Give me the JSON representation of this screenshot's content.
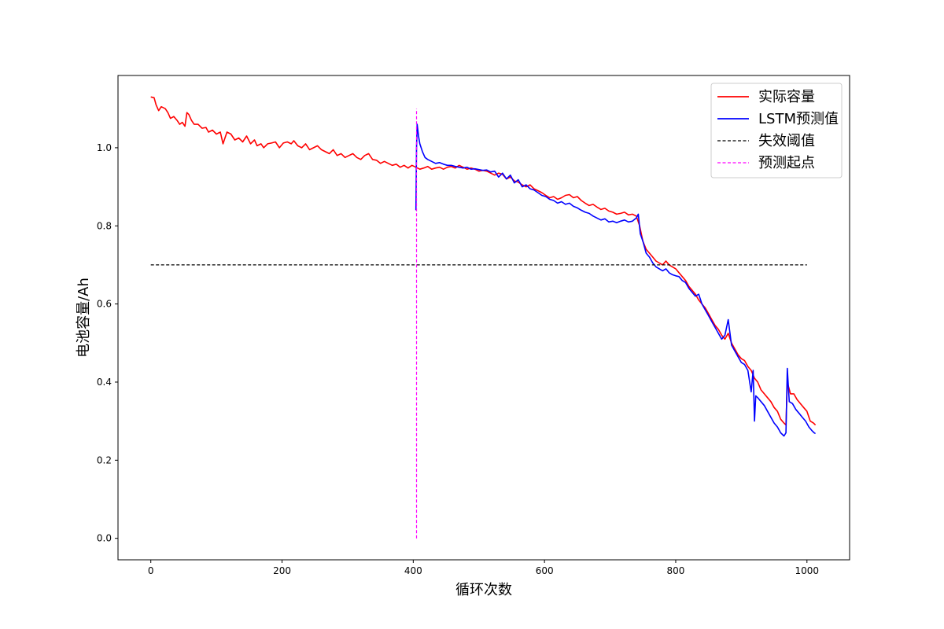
{
  "chart_data": {
    "type": "line",
    "xlabel": "循环次数",
    "ylabel": "电池容量/Ah",
    "xlim": [
      -50,
      1065
    ],
    "ylim": [
      -0.055,
      1.185
    ],
    "xticks": [
      0,
      200,
      400,
      600,
      800,
      1000
    ],
    "yticks": [
      0.0,
      0.2,
      0.4,
      0.6,
      0.8,
      1.0
    ],
    "xtick_labels": [
      "0",
      "200",
      "400",
      "600",
      "800",
      "1000"
    ],
    "ytick_labels": [
      "0.0",
      "0.2",
      "0.4",
      "0.6",
      "0.8",
      "1.0"
    ],
    "grid": false,
    "legend_position": "upper right",
    "series": [
      {
        "name": "实际容量",
        "color": "#ff0000",
        "style": "solid",
        "points": [
          [
            0,
            1.13
          ],
          [
            5,
            1.128
          ],
          [
            8,
            1.11
          ],
          [
            12,
            1.095
          ],
          [
            16,
            1.105
          ],
          [
            22,
            1.1
          ],
          [
            26,
            1.09
          ],
          [
            30,
            1.075
          ],
          [
            35,
            1.08
          ],
          [
            40,
            1.07
          ],
          [
            44,
            1.06
          ],
          [
            48,
            1.065
          ],
          [
            52,
            1.055
          ],
          [
            55,
            1.09
          ],
          [
            58,
            1.085
          ],
          [
            62,
            1.07
          ],
          [
            66,
            1.06
          ],
          [
            72,
            1.06
          ],
          [
            78,
            1.05
          ],
          [
            84,
            1.052
          ],
          [
            88,
            1.04
          ],
          [
            94,
            1.045
          ],
          [
            100,
            1.035
          ],
          [
            106,
            1.04
          ],
          [
            110,
            1.01
          ],
          [
            116,
            1.04
          ],
          [
            122,
            1.035
          ],
          [
            128,
            1.02
          ],
          [
            134,
            1.025
          ],
          [
            140,
            1.015
          ],
          [
            146,
            1.03
          ],
          [
            152,
            1.01
          ],
          [
            158,
            1.02
          ],
          [
            162,
            1.005
          ],
          [
            168,
            1.01
          ],
          [
            172,
            1.0
          ],
          [
            178,
            1.01
          ],
          [
            184,
            1.012
          ],
          [
            190,
            1.015
          ],
          [
            196,
            1.0
          ],
          [
            202,
            1.012
          ],
          [
            208,
            1.015
          ],
          [
            214,
            1.01
          ],
          [
            218,
            1.018
          ],
          [
            224,
            1.005
          ],
          [
            230,
            1.0
          ],
          [
            236,
            1.01
          ],
          [
            242,
            0.995
          ],
          [
            248,
            1.0
          ],
          [
            254,
            1.005
          ],
          [
            260,
            0.995
          ],
          [
            266,
            0.99
          ],
          [
            272,
            0.985
          ],
          [
            278,
            0.995
          ],
          [
            284,
            0.98
          ],
          [
            290,
            0.985
          ],
          [
            296,
            0.975
          ],
          [
            302,
            0.98
          ],
          [
            308,
            0.985
          ],
          [
            314,
            0.975
          ],
          [
            320,
            0.97
          ],
          [
            326,
            0.98
          ],
          [
            332,
            0.985
          ],
          [
            338,
            0.97
          ],
          [
            344,
            0.968
          ],
          [
            350,
            0.96
          ],
          [
            356,
            0.965
          ],
          [
            362,
            0.96
          ],
          [
            368,
            0.955
          ],
          [
            374,
            0.958
          ],
          [
            380,
            0.95
          ],
          [
            386,
            0.955
          ],
          [
            392,
            0.948
          ],
          [
            398,
            0.955
          ],
          [
            404,
            0.95
          ],
          [
            410,
            0.945
          ],
          [
            416,
            0.948
          ],
          [
            422,
            0.952
          ],
          [
            428,
            0.945
          ],
          [
            434,
            0.948
          ],
          [
            440,
            0.95
          ],
          [
            446,
            0.945
          ],
          [
            452,
            0.95
          ],
          [
            458,
            0.952
          ],
          [
            464,
            0.948
          ],
          [
            470,
            0.955
          ],
          [
            476,
            0.95
          ],
          [
            482,
            0.945
          ],
          [
            488,
            0.948
          ],
          [
            494,
            0.945
          ],
          [
            500,
            0.94
          ],
          [
            506,
            0.942
          ],
          [
            512,
            0.94
          ],
          [
            518,
            0.935
          ],
          [
            524,
            0.93
          ],
          [
            530,
            0.935
          ],
          [
            536,
            0.932
          ],
          [
            542,
            0.92
          ],
          [
            548,
            0.925
          ],
          [
            554,
            0.915
          ],
          [
            560,
            0.912
          ],
          [
            566,
            0.905
          ],
          [
            572,
            0.9
          ],
          [
            578,
            0.905
          ],
          [
            584,
            0.895
          ],
          [
            590,
            0.89
          ],
          [
            596,
            0.885
          ],
          [
            602,
            0.878
          ],
          [
            608,
            0.872
          ],
          [
            614,
            0.875
          ],
          [
            620,
            0.868
          ],
          [
            626,
            0.872
          ],
          [
            632,
            0.878
          ],
          [
            638,
            0.88
          ],
          [
            644,
            0.872
          ],
          [
            650,
            0.875
          ],
          [
            656,
            0.865
          ],
          [
            662,
            0.858
          ],
          [
            668,
            0.852
          ],
          [
            674,
            0.855
          ],
          [
            680,
            0.848
          ],
          [
            686,
            0.842
          ],
          [
            692,
            0.845
          ],
          [
            698,
            0.838
          ],
          [
            704,
            0.835
          ],
          [
            710,
            0.83
          ],
          [
            716,
            0.832
          ],
          [
            722,
            0.835
          ],
          [
            728,
            0.828
          ],
          [
            734,
            0.83
          ],
          [
            740,
            0.825
          ],
          [
            745,
            0.8
          ],
          [
            750,
            0.76
          ],
          [
            755,
            0.74
          ],
          [
            760,
            0.73
          ],
          [
            765,
            0.72
          ],
          [
            770,
            0.71
          ],
          [
            775,
            0.705
          ],
          [
            780,
            0.7
          ],
          [
            785,
            0.71
          ],
          [
            790,
            0.7
          ],
          [
            795,
            0.695
          ],
          [
            800,
            0.69
          ],
          [
            805,
            0.68
          ],
          [
            810,
            0.67
          ],
          [
            815,
            0.66
          ],
          [
            820,
            0.645
          ],
          [
            825,
            0.635
          ],
          [
            830,
            0.625
          ],
          [
            835,
            0.61
          ],
          [
            840,
            0.6
          ],
          [
            845,
            0.59
          ],
          [
            850,
            0.575
          ],
          [
            855,
            0.56
          ],
          [
            860,
            0.545
          ],
          [
            865,
            0.535
          ],
          [
            870,
            0.52
          ],
          [
            875,
            0.51
          ],
          [
            880,
            0.525
          ],
          [
            885,
            0.5
          ],
          [
            890,
            0.485
          ],
          [
            895,
            0.47
          ],
          [
            900,
            0.46
          ],
          [
            905,
            0.455
          ],
          [
            910,
            0.44
          ],
          [
            915,
            0.43
          ],
          [
            920,
            0.41
          ],
          [
            925,
            0.4
          ],
          [
            930,
            0.38
          ],
          [
            935,
            0.37
          ],
          [
            940,
            0.36
          ],
          [
            945,
            0.35
          ],
          [
            950,
            0.335
          ],
          [
            955,
            0.325
          ],
          [
            960,
            0.305
          ],
          [
            965,
            0.295
          ],
          [
            968,
            0.29
          ],
          [
            970,
            0.4
          ],
          [
            975,
            0.37
          ],
          [
            980,
            0.37
          ],
          [
            985,
            0.355
          ],
          [
            990,
            0.345
          ],
          [
            995,
            0.335
          ],
          [
            1000,
            0.325
          ],
          [
            1005,
            0.3
          ],
          [
            1010,
            0.295
          ],
          [
            1013,
            0.29
          ]
        ]
      },
      {
        "name": "LSTM预测值",
        "color": "#0000ff",
        "style": "solid",
        "points": [
          [
            404,
            0.84
          ],
          [
            405,
            1.0
          ],
          [
            406,
            1.06
          ],
          [
            408,
            1.03
          ],
          [
            410,
            1.01
          ],
          [
            414,
            0.99
          ],
          [
            418,
            0.975
          ],
          [
            422,
            0.97
          ],
          [
            428,
            0.965
          ],
          [
            434,
            0.96
          ],
          [
            440,
            0.962
          ],
          [
            446,
            0.958
          ],
          [
            452,
            0.955
          ],
          [
            458,
            0.955
          ],
          [
            464,
            0.952
          ],
          [
            470,
            0.95
          ],
          [
            476,
            0.948
          ],
          [
            482,
            0.95
          ],
          [
            488,
            0.945
          ],
          [
            494,
            0.946
          ],
          [
            500,
            0.944
          ],
          [
            506,
            0.942
          ],
          [
            512,
            0.943
          ],
          [
            518,
            0.938
          ],
          [
            524,
            0.94
          ],
          [
            530,
            0.925
          ],
          [
            536,
            0.935
          ],
          [
            542,
            0.92
          ],
          [
            548,
            0.93
          ],
          [
            554,
            0.91
          ],
          [
            560,
            0.918
          ],
          [
            566,
            0.9
          ],
          [
            572,
            0.905
          ],
          [
            578,
            0.895
          ],
          [
            584,
            0.892
          ],
          [
            590,
            0.885
          ],
          [
            596,
            0.878
          ],
          [
            602,
            0.875
          ],
          [
            608,
            0.868
          ],
          [
            614,
            0.865
          ],
          [
            620,
            0.858
          ],
          [
            626,
            0.862
          ],
          [
            632,
            0.855
          ],
          [
            638,
            0.858
          ],
          [
            644,
            0.85
          ],
          [
            650,
            0.846
          ],
          [
            656,
            0.84
          ],
          [
            662,
            0.835
          ],
          [
            668,
            0.832
          ],
          [
            674,
            0.825
          ],
          [
            680,
            0.82
          ],
          [
            686,
            0.815
          ],
          [
            692,
            0.818
          ],
          [
            698,
            0.81
          ],
          [
            704,
            0.812
          ],
          [
            710,
            0.808
          ],
          [
            716,
            0.812
          ],
          [
            722,
            0.815
          ],
          [
            728,
            0.81
          ],
          [
            734,
            0.812
          ],
          [
            740,
            0.82
          ],
          [
            743,
            0.83
          ],
          [
            746,
            0.78
          ],
          [
            750,
            0.76
          ],
          [
            755,
            0.73
          ],
          [
            760,
            0.72
          ],
          [
            765,
            0.705
          ],
          [
            770,
            0.695
          ],
          [
            775,
            0.69
          ],
          [
            780,
            0.685
          ],
          [
            785,
            0.69
          ],
          [
            790,
            0.68
          ],
          [
            795,
            0.675
          ],
          [
            800,
            0.672
          ],
          [
            805,
            0.67
          ],
          [
            810,
            0.66
          ],
          [
            815,
            0.655
          ],
          [
            820,
            0.64
          ],
          [
            825,
            0.63
          ],
          [
            830,
            0.62
          ],
          [
            835,
            0.625
          ],
          [
            840,
            0.6
          ],
          [
            845,
            0.585
          ],
          [
            850,
            0.57
          ],
          [
            855,
            0.555
          ],
          [
            860,
            0.54
          ],
          [
            865,
            0.525
          ],
          [
            870,
            0.51
          ],
          [
            875,
            0.52
          ],
          [
            880,
            0.56
          ],
          [
            885,
            0.495
          ],
          [
            890,
            0.48
          ],
          [
            895,
            0.465
          ],
          [
            900,
            0.45
          ],
          [
            905,
            0.445
          ],
          [
            910,
            0.43
          ],
          [
            915,
            0.375
          ],
          [
            918,
            0.43
          ],
          [
            920,
            0.3
          ],
          [
            922,
            0.365
          ],
          [
            925,
            0.36
          ],
          [
            930,
            0.35
          ],
          [
            935,
            0.34
          ],
          [
            940,
            0.325
          ],
          [
            945,
            0.31
          ],
          [
            950,
            0.295
          ],
          [
            955,
            0.285
          ],
          [
            960,
            0.27
          ],
          [
            965,
            0.262
          ],
          [
            968,
            0.27
          ],
          [
            970,
            0.435
          ],
          [
            973,
            0.35
          ],
          [
            978,
            0.345
          ],
          [
            983,
            0.33
          ],
          [
            988,
            0.32
          ],
          [
            993,
            0.31
          ],
          [
            998,
            0.3
          ],
          [
            1003,
            0.285
          ],
          [
            1008,
            0.275
          ],
          [
            1011,
            0.27
          ],
          [
            1013,
            0.268
          ]
        ]
      },
      {
        "name": "失效阈值",
        "color": "#000000",
        "style": "dashed",
        "points": [
          [
            0,
            0.7
          ],
          [
            1000,
            0.7
          ]
        ]
      },
      {
        "name": "预测起点",
        "color": "#ff00ff",
        "style": "dashed",
        "points": [
          [
            405,
            0.0
          ],
          [
            405,
            1.1
          ]
        ]
      }
    ]
  }
}
